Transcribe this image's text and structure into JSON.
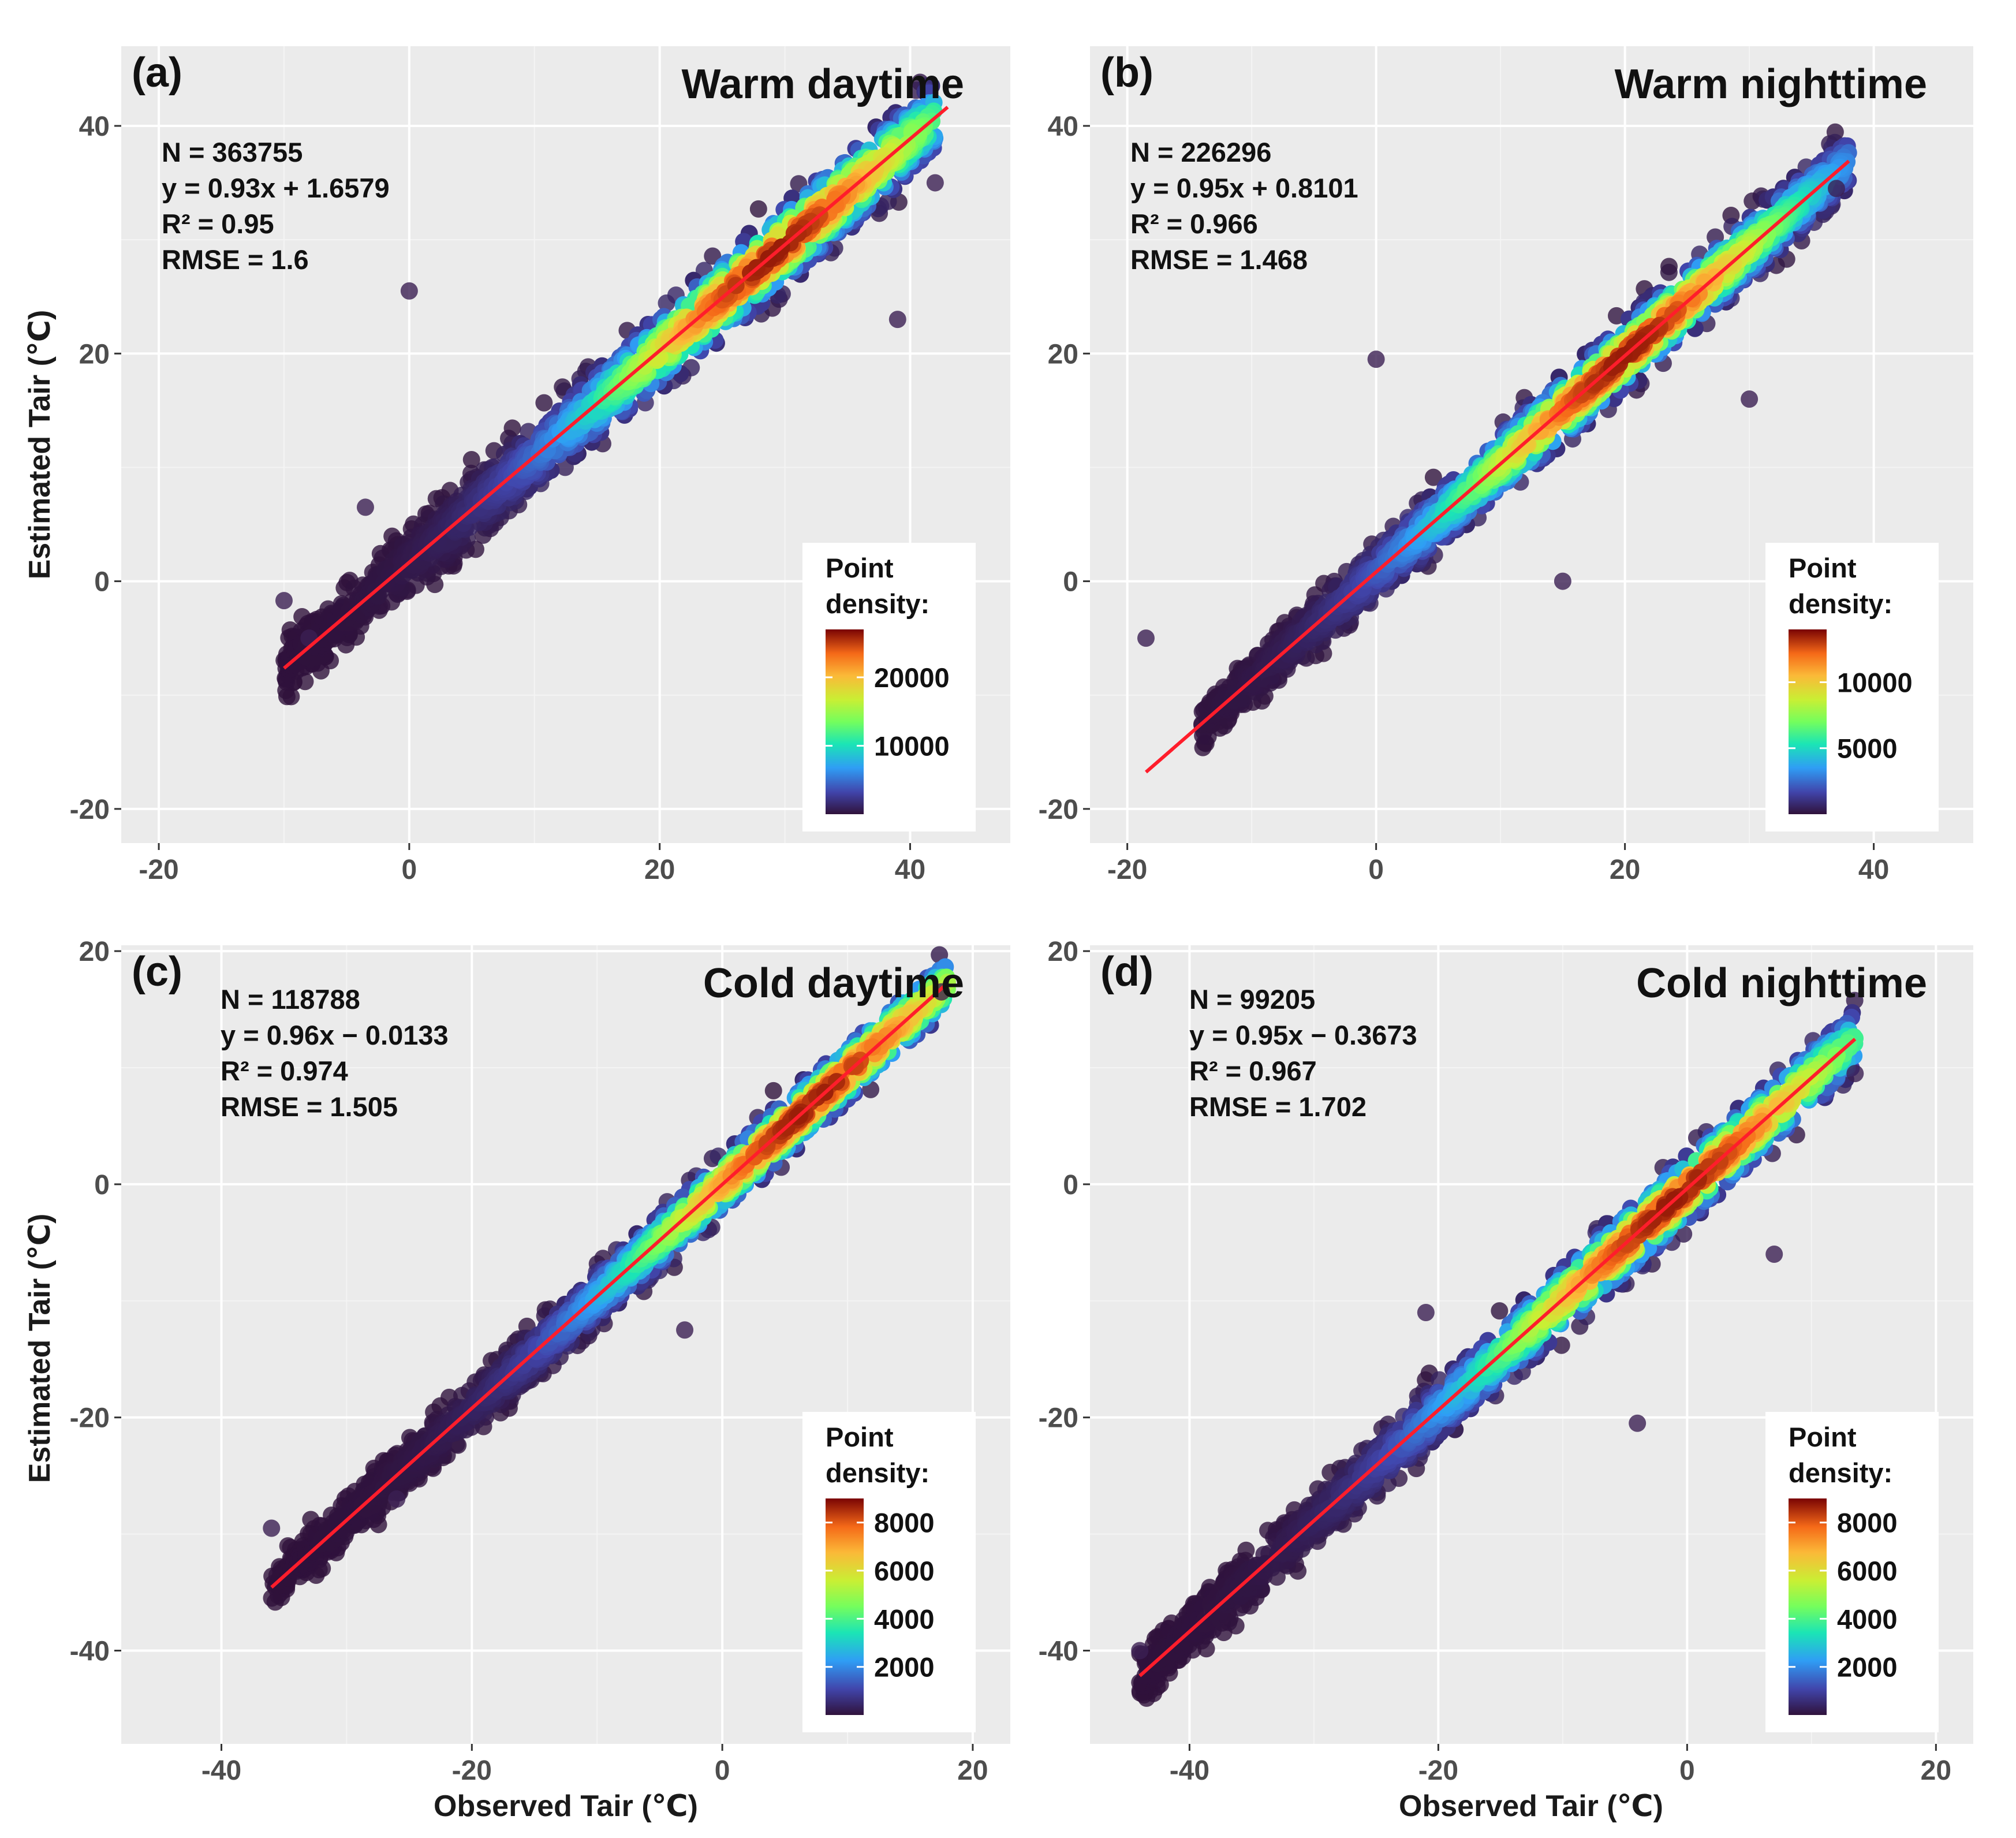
{
  "figure": {
    "x_axis_label": "Observed Tair (℃)",
    "y_axis_label": "Estimated Tair (℃)"
  },
  "chart_data": [
    {
      "type": "scatter",
      "panel_label": "(a)",
      "title": "Warm daytime",
      "xlim": [
        -23,
        48
      ],
      "ylim": [
        -23,
        47
      ],
      "xticks": [
        -20,
        0,
        20,
        40
      ],
      "yticks": [
        -20,
        0,
        20,
        40
      ],
      "stats": [
        "N = 363755",
        "y = 0.93x + 1.6579",
        "R² = 0.95",
        "RMSE = 1.6"
      ],
      "fit": {
        "slope": 0.93,
        "intercept": 1.6579,
        "x_range": [
          -10,
          43
        ]
      },
      "cloud": {
        "x_range": [
          -10,
          42
        ],
        "peak_x": 29,
        "spread": 2.6
      },
      "outliers": [
        [
          0,
          25.5
        ],
        [
          -3.5,
          6.5
        ],
        [
          -8,
          -5
        ],
        [
          -10,
          -1.7
        ],
        [
          39,
          23
        ],
        [
          42,
          35
        ]
      ],
      "legend": {
        "title_lines": [
          "Point",
          "density:"
        ],
        "tick_labels": [
          "10000",
          "20000"
        ],
        "tick_values": [
          10000,
          20000
        ],
        "max": 27000,
        "position": "bottom-right"
      }
    },
    {
      "type": "scatter",
      "panel_label": "(b)",
      "title": "Warm nighttime",
      "xlim": [
        -23,
        48
      ],
      "ylim": [
        -23,
        47
      ],
      "xticks": [
        -20,
        0,
        20,
        40
      ],
      "yticks": [
        -20,
        0,
        20,
        40
      ],
      "stats": [
        "N = 226296",
        "y = 0.95x + 0.8101",
        "R² = 0.966",
        "RMSE = 1.468"
      ],
      "fit": {
        "slope": 0.95,
        "intercept": 0.8101,
        "x_range": [
          -18.5,
          38
        ]
      },
      "cloud": {
        "x_range": [
          -14,
          38
        ],
        "peak_x": 20,
        "spread": 2.2
      },
      "outliers": [
        [
          0,
          19.5
        ],
        [
          -18.5,
          -5
        ],
        [
          15,
          0
        ],
        [
          30,
          16
        ],
        [
          37,
          34.5
        ]
      ],
      "legend": {
        "title_lines": [
          "Point",
          "density:"
        ],
        "tick_labels": [
          "5000",
          "10000"
        ],
        "tick_values": [
          5000,
          10000
        ],
        "max": 14000,
        "position": "bottom-right"
      }
    },
    {
      "type": "scatter",
      "panel_label": "(c)",
      "title": "Cold daytime",
      "xlim": [
        -48,
        23
      ],
      "ylim": [
        -48,
        20.5
      ],
      "xticks": [
        -40,
        -20,
        0,
        20
      ],
      "yticks": [
        -40,
        -20,
        0,
        20
      ],
      "stats": [
        "N = 118788",
        "y = 0.96x − 0.0133",
        "R² = 0.974",
        "RMSE = 1.505"
      ],
      "fit": {
        "slope": 0.96,
        "intercept": -0.0133,
        "x_range": [
          -36,
          18
        ]
      },
      "cloud": {
        "x_range": [
          -36,
          18
        ],
        "peak_x": 7,
        "spread": 1.9
      },
      "outliers": [
        [
          -36,
          -29.5
        ],
        [
          -3,
          -12.5
        ],
        [
          17.5,
          16.5
        ],
        [
          -26,
          -27
        ]
      ],
      "legend": {
        "title_lines": [
          "Point",
          "density:"
        ],
        "tick_labels": [
          "2000",
          "4000",
          "6000",
          "8000"
        ],
        "tick_values": [
          2000,
          4000,
          6000,
          8000
        ],
        "max": 9000,
        "position": "bottom-right"
      }
    },
    {
      "type": "scatter",
      "panel_label": "(d)",
      "title": "Cold nighttime",
      "xlim": [
        -48,
        23
      ],
      "ylim": [
        -48,
        20.5
      ],
      "xticks": [
        -40,
        -20,
        0,
        20
      ],
      "yticks": [
        -40,
        -20,
        0,
        20
      ],
      "stats": [
        "N = 99205",
        "y = 0.95x − 0.3673",
        "R² = 0.967",
        "RMSE = 1.702"
      ],
      "fit": {
        "slope": 0.95,
        "intercept": -0.3673,
        "x_range": [
          -44,
          13.5
        ]
      },
      "cloud": {
        "x_range": [
          -44,
          13.5
        ],
        "peak_x": -1,
        "spread": 2.2
      },
      "outliers": [
        [
          -4,
          -20.5
        ],
        [
          -44,
          -40
        ],
        [
          -21,
          -11
        ],
        [
          7,
          -6
        ],
        [
          13.5,
          9.5
        ]
      ],
      "legend": {
        "title_lines": [
          "Point",
          "density:"
        ],
        "tick_labels": [
          "2000",
          "4000",
          "6000",
          "8000"
        ],
        "tick_values": [
          2000,
          4000,
          6000,
          8000
        ],
        "max": 9000,
        "position": "bottom-right"
      }
    }
  ]
}
